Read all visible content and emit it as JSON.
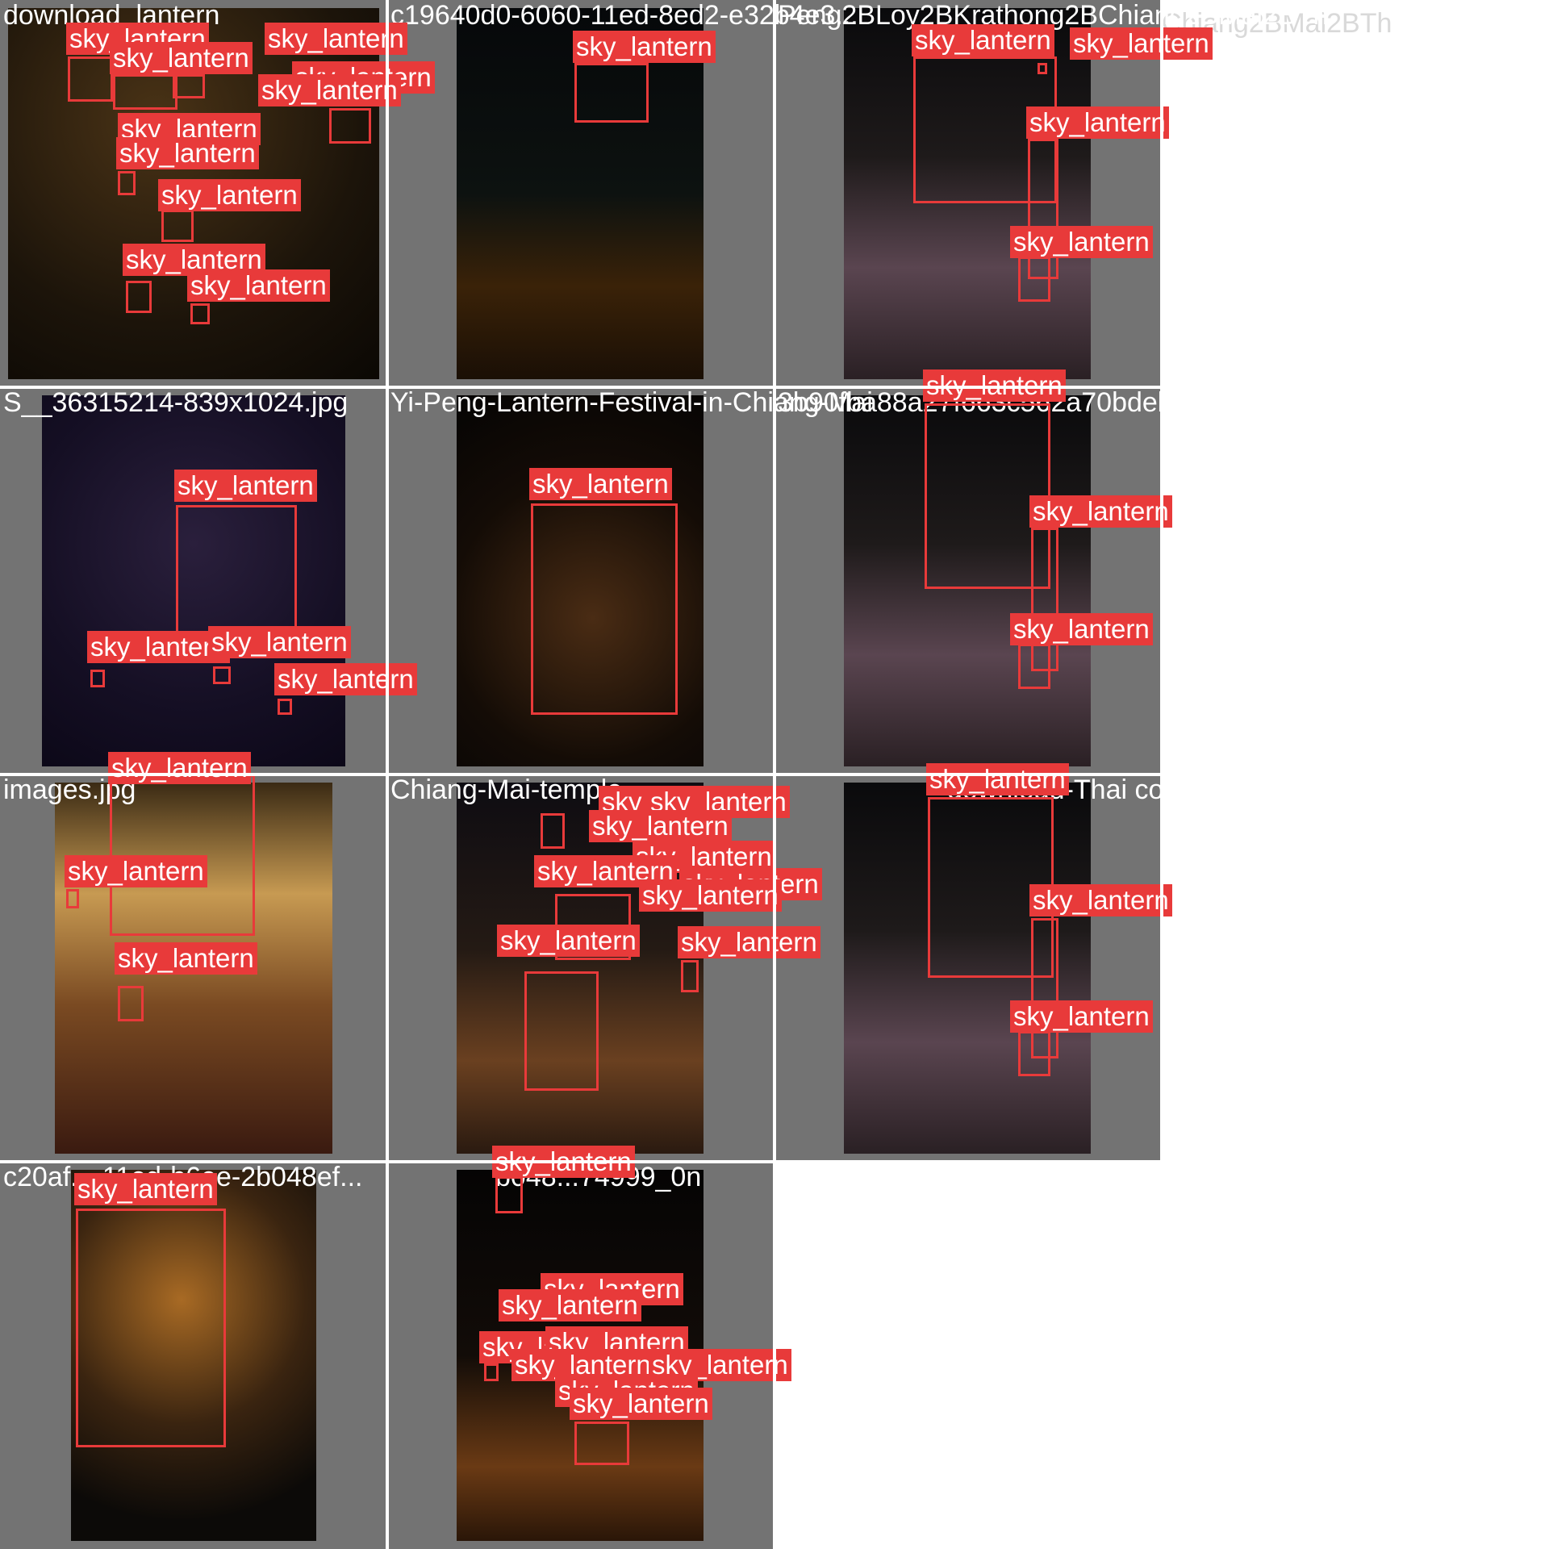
{
  "grid": {
    "label_color": "#e83a3a",
    "background_color": "#737373",
    "cells": [
      {
        "filename": "download_lantern",
        "photo_theme": "crowd-night",
        "detections": [
          {
            "label": "sky_lantern"
          },
          {
            "label": "sky_lantern"
          },
          {
            "label": "sky_lantern"
          },
          {
            "label": "sky_lantern"
          },
          {
            "label": "sky_lantern"
          },
          {
            "label": "sky_lantern"
          },
          {
            "label": "sky_lantern"
          },
          {
            "label": "sky_lantern"
          },
          {
            "label": "sky_lantern"
          },
          {
            "label": "sky_lantern"
          },
          {
            "label": "sky_lantern"
          },
          {
            "label": "sky_lantern"
          }
        ]
      },
      {
        "filename": "c19640d0-6060-11ed-8ed2-e32b4e3...",
        "photo_theme": "couple-release",
        "detections": [
          {
            "label": "sky_lantern"
          }
        ]
      },
      {
        "filename": "Peng2BLoy2BKrathong2BChiang2BMai2BTh",
        "photo_theme": "woman-release",
        "detections": [
          {
            "label": "sky_lantern"
          },
          {
            "label": "sky_lantern"
          },
          {
            "label": "sky_lantern"
          },
          {
            "label": "sky_lantern"
          }
        ]
      },
      {
        "filename": "S__36315214-839x1024.jpg",
        "photo_theme": "sky-lanterns",
        "detections": [
          {
            "label": "sky_lantern"
          },
          {
            "label": "sky_lantern"
          },
          {
            "label": "sky_lantern"
          },
          {
            "label": "sky_lantern"
          }
        ]
      },
      {
        "filename": "Yi-Peng-Lantern-Festival-in-Chiang-Mai",
        "photo_theme": "single-lantern",
        "detections": [
          {
            "label": "sky_lantern"
          }
        ]
      },
      {
        "filename": "3b90fba88a27f663c562a70bdeb6b1fda.jpg",
        "photo_theme": "woman-release",
        "detections": [
          {
            "label": "sky_lantern"
          },
          {
            "label": "sky_lantern"
          },
          {
            "label": "sky_lantern"
          }
        ]
      },
      {
        "filename": "images.jpg",
        "photo_theme": "celebration",
        "detections": [
          {
            "label": "sky_lantern"
          },
          {
            "label": "sky_lantern"
          },
          {
            "label": "sky_lantern"
          }
        ]
      },
      {
        "filename": "Chiang-Mai-temple",
        "photo_theme": "couple-temple",
        "detections": [
          {
            "label": "sky_lantern"
          },
          {
            "label": "sky_lantern"
          },
          {
            "label": "sky_lantern"
          },
          {
            "label": "sky_lantern"
          },
          {
            "label": "sky_lantern"
          },
          {
            "label": "sky_lantern"
          },
          {
            "label": "sky_lantern"
          },
          {
            "label": "sky_lantern"
          },
          {
            "label": "sky_lantern"
          },
          {
            "label": "sky_lantern"
          }
        ]
      },
      {
        "filename": "download-Thai copy.jpg",
        "photo_theme": "woman-release",
        "detections": [
          {
            "label": "sky_lantern"
          },
          {
            "label": "sky_lantern"
          },
          {
            "label": "sky_lantern"
          }
        ]
      },
      {
        "filename": "c20af...-11ed-b6ee-2b048ef...",
        "photo_theme": "girl-lantern",
        "detections": [
          {
            "label": "sky_lantern"
          }
        ]
      },
      {
        "filename": "b048...74999_0n",
        "photo_theme": "poster-crowd",
        "detections": [
          {
            "label": "sky_lantern"
          },
          {
            "label": "sky_lantern"
          },
          {
            "label": "sky_lantern"
          },
          {
            "label": "sky_lantern"
          },
          {
            "label": "sky_lantern"
          },
          {
            "label": "sky_lantern"
          },
          {
            "label": "sky_lantern"
          },
          {
            "label": "sky_lantern"
          },
          {
            "label": "sky_lantern"
          }
        ]
      }
    ]
  }
}
